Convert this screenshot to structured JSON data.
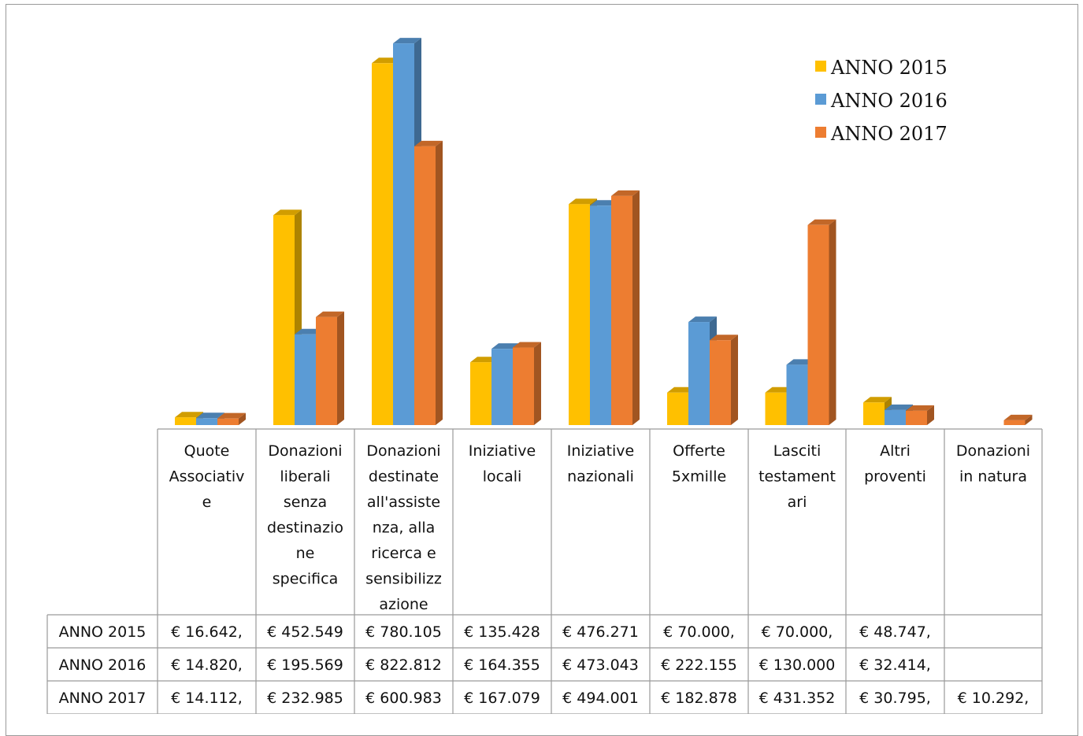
{
  "chart_data": {
    "type": "bar",
    "style": "3d-clustered-column-with-data-table",
    "categories": [
      "Quote Associative",
      "Donazioni liberali senza destinazione specifica",
      "Donazioni destinate all'assistenza, alla ricerca e sensibilizzazione",
      "Iniziative locali",
      "Iniziative nazionali",
      "Offerte 5xmille",
      "Lasciti testamentari",
      "Altri proventi",
      "Donazioni in natura"
    ],
    "category_lines": [
      [
        "Quote",
        "Associativ",
        "e"
      ],
      [
        "Donazioni",
        "liberali",
        "senza",
        "destinazio",
        "ne",
        "specifica"
      ],
      [
        "Donazioni",
        "destinate",
        "all'assiste",
        "nza, alla",
        "ricerca e",
        "sensibilizz",
        "azione"
      ],
      [
        "Iniziative",
        "locali"
      ],
      [
        "Iniziative",
        "nazionali"
      ],
      [
        "Offerte",
        "5xmille"
      ],
      [
        "Lasciti",
        "testament",
        "ari"
      ],
      [
        "Altri",
        "proventi"
      ],
      [
        "Donazioni",
        "in natura"
      ]
    ],
    "series": [
      {
        "name": "ANNO 2015",
        "color": "#FFC000",
        "values": [
          16642,
          452549,
          780105,
          135428,
          476271,
          70000,
          70000,
          48747,
          null
        ],
        "cells": [
          "€ 16.642,",
          "€ 452.549",
          "€ 780.105",
          "€ 135.428",
          "€ 476.271",
          "€ 70.000,",
          "€ 70.000,",
          "€ 48.747,",
          ""
        ]
      },
      {
        "name": "ANNO 2016",
        "color": "#5B9BD5",
        "values": [
          14820,
          195569,
          822812,
          164355,
          473043,
          222155,
          130000,
          32414,
          null
        ],
        "cells": [
          "€ 14.820,",
          "€ 195.569",
          "€ 822.812",
          "€ 164.355",
          "€ 473.043",
          "€ 222.155",
          "€ 130.000",
          "€ 32.414,",
          ""
        ]
      },
      {
        "name": "ANNO 2017",
        "color": "#ED7D31",
        "values": [
          14112,
          232985,
          600983,
          167079,
          494001,
          182878,
          431352,
          30795,
          10292
        ],
        "cells": [
          "€ 14.112,",
          "€ 232.985",
          "€ 600.983",
          "€ 167.079",
          "€ 494.001",
          "€ 182.878",
          "€ 431.352",
          "€ 30.795,",
          "€ 10.292,"
        ]
      }
    ],
    "ylim": [
      0,
      840000
    ],
    "grid": false,
    "legend": "top-right"
  }
}
